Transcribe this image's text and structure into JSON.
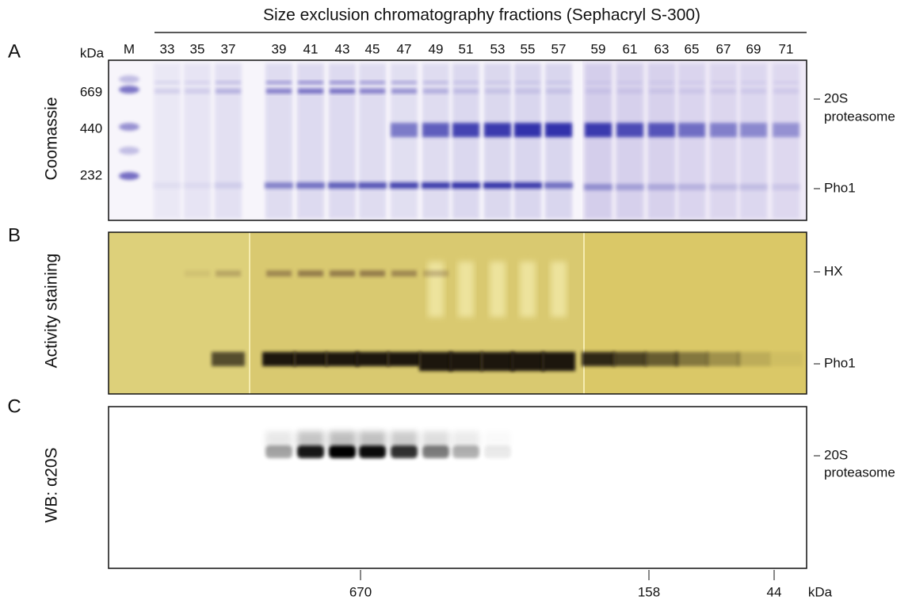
{
  "header": {
    "title": "Size exclusion chromatography fractions (Sephacryl S-300)"
  },
  "lanes": {
    "unit": "kDa",
    "marker": "M",
    "fractions": [
      "33",
      "35",
      "37",
      "39",
      "41",
      "43",
      "45",
      "47",
      "49",
      "51",
      "53",
      "55",
      "57",
      "59",
      "61",
      "63",
      "65",
      "67",
      "69",
      "71"
    ],
    "marker_sizes": [
      "669",
      "440",
      "232"
    ]
  },
  "panels": [
    {
      "letter": "A",
      "y_label": "Coomassie",
      "right_labels": [
        "20S",
        "proteasome",
        "Pho1"
      ]
    },
    {
      "letter": "B",
      "y_label": "Activity staining",
      "right_labels": [
        "HX",
        "Pho1"
      ]
    },
    {
      "letter": "C",
      "y_label": "WB: α20S",
      "right_labels": [
        "20S",
        "proteasome"
      ]
    }
  ],
  "calibration": {
    "labels": [
      "670",
      "158",
      "44"
    ],
    "unit": "kDa"
  }
}
